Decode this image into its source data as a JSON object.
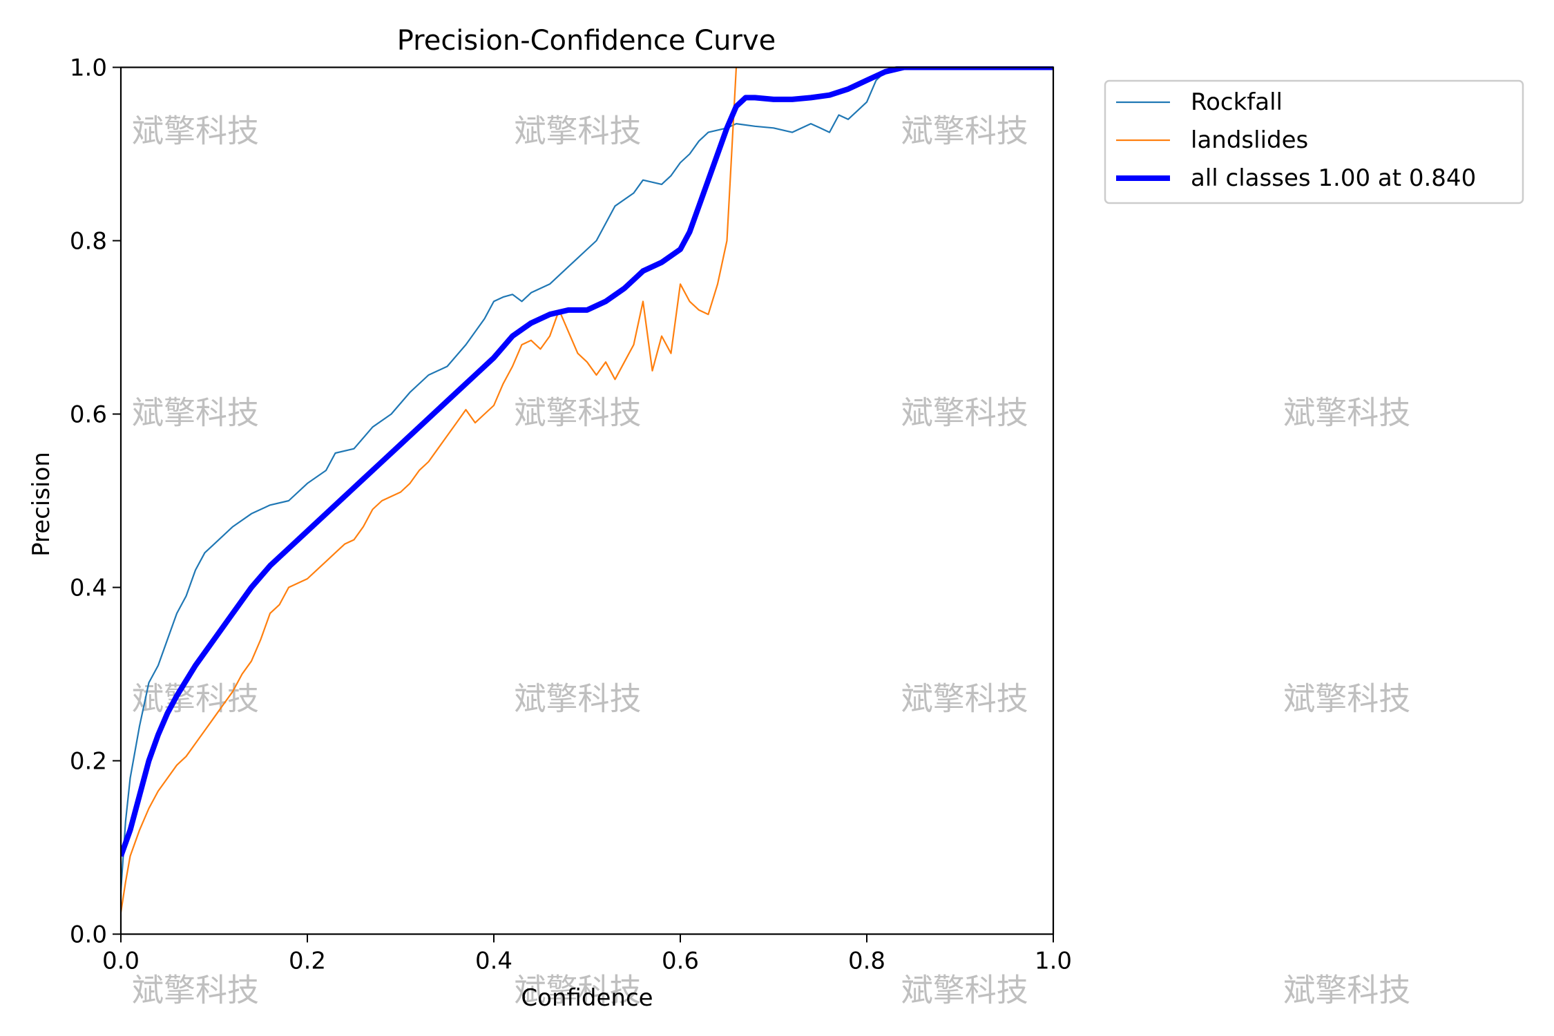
{
  "watermark": {
    "text": "斌擎科技",
    "columns": [
      0.08,
      0.49,
      0.905,
      1.315
    ],
    "rows": [
      0.925,
      0.6,
      0.27,
      -0.066
    ]
  },
  "chart_data": {
    "type": "line",
    "title": "Precision-Confidence Curve",
    "xlabel": "Confidence",
    "ylabel": "Precision",
    "xlim": [
      0.0,
      1.0
    ],
    "ylim": [
      0.0,
      1.0
    ],
    "xticks": [
      "0.0",
      "0.2",
      "0.4",
      "0.6",
      "0.8",
      "1.0"
    ],
    "yticks": [
      "0.0",
      "0.2",
      "0.4",
      "0.6",
      "0.8",
      "1.0"
    ],
    "xtick_values": [
      0,
      0.2,
      0.4,
      0.6,
      0.8,
      1.0
    ],
    "ytick_values": [
      0,
      0.2,
      0.4,
      0.6,
      0.8,
      1.0
    ],
    "grid": false,
    "legend_position": "outside-top-right",
    "series": [
      {
        "name": "Rockfall",
        "color": "#1f77b4",
        "weight": "thin",
        "x": [
          0.0,
          0.005,
          0.01,
          0.02,
          0.03,
          0.04,
          0.05,
          0.06,
          0.07,
          0.08,
          0.09,
          0.1,
          0.12,
          0.14,
          0.16,
          0.18,
          0.2,
          0.22,
          0.23,
          0.25,
          0.27,
          0.29,
          0.31,
          0.33,
          0.35,
          0.37,
          0.39,
          0.4,
          0.41,
          0.42,
          0.43,
          0.44,
          0.45,
          0.46,
          0.48,
          0.49,
          0.5,
          0.51,
          0.52,
          0.53,
          0.55,
          0.56,
          0.58,
          0.59,
          0.6,
          0.61,
          0.62,
          0.63,
          0.65,
          0.66,
          0.68,
          0.7,
          0.72,
          0.74,
          0.75,
          0.76,
          0.77,
          0.78,
          0.79,
          0.8,
          0.81,
          0.82,
          0.83,
          0.84,
          0.9,
          1.0
        ],
        "y": [
          0.05,
          0.13,
          0.18,
          0.24,
          0.29,
          0.31,
          0.34,
          0.37,
          0.39,
          0.42,
          0.44,
          0.45,
          0.47,
          0.485,
          0.495,
          0.5,
          0.52,
          0.535,
          0.555,
          0.56,
          0.585,
          0.6,
          0.625,
          0.645,
          0.655,
          0.68,
          0.71,
          0.73,
          0.735,
          0.738,
          0.73,
          0.74,
          0.745,
          0.75,
          0.77,
          0.78,
          0.79,
          0.8,
          0.82,
          0.84,
          0.855,
          0.87,
          0.865,
          0.875,
          0.89,
          0.9,
          0.915,
          0.925,
          0.93,
          0.935,
          0.932,
          0.93,
          0.925,
          0.935,
          0.93,
          0.925,
          0.945,
          0.94,
          0.95,
          0.96,
          0.985,
          0.995,
          1.0,
          1.0,
          1.0,
          1.0
        ]
      },
      {
        "name": "landslides",
        "color": "#ff7f0e",
        "weight": "thin",
        "x": [
          0.0,
          0.005,
          0.01,
          0.02,
          0.03,
          0.04,
          0.05,
          0.06,
          0.07,
          0.08,
          0.09,
          0.1,
          0.11,
          0.12,
          0.13,
          0.14,
          0.15,
          0.16,
          0.17,
          0.18,
          0.19,
          0.2,
          0.21,
          0.22,
          0.23,
          0.24,
          0.25,
          0.26,
          0.27,
          0.28,
          0.29,
          0.3,
          0.31,
          0.32,
          0.33,
          0.34,
          0.35,
          0.36,
          0.37,
          0.38,
          0.39,
          0.4,
          0.41,
          0.42,
          0.43,
          0.44,
          0.45,
          0.46,
          0.47,
          0.48,
          0.49,
          0.5,
          0.51,
          0.52,
          0.53,
          0.54,
          0.55,
          0.56,
          0.57,
          0.58,
          0.59,
          0.6,
          0.61,
          0.62,
          0.63,
          0.64,
          0.65,
          0.655,
          0.66
        ],
        "y": [
          0.025,
          0.06,
          0.09,
          0.12,
          0.145,
          0.165,
          0.18,
          0.195,
          0.205,
          0.22,
          0.235,
          0.25,
          0.265,
          0.28,
          0.3,
          0.315,
          0.34,
          0.37,
          0.38,
          0.4,
          0.405,
          0.41,
          0.42,
          0.43,
          0.44,
          0.45,
          0.455,
          0.47,
          0.49,
          0.5,
          0.505,
          0.51,
          0.52,
          0.535,
          0.545,
          0.56,
          0.575,
          0.59,
          0.605,
          0.59,
          0.6,
          0.61,
          0.635,
          0.655,
          0.68,
          0.685,
          0.675,
          0.69,
          0.72,
          0.695,
          0.67,
          0.66,
          0.645,
          0.66,
          0.64,
          0.66,
          0.68,
          0.73,
          0.65,
          0.69,
          0.67,
          0.75,
          0.73,
          0.72,
          0.715,
          0.75,
          0.8,
          0.9,
          1.0
        ]
      },
      {
        "name": "all classes 1.00 at 0.840",
        "color": "#0000ff",
        "weight": "thick",
        "x": [
          0.0,
          0.01,
          0.02,
          0.03,
          0.04,
          0.05,
          0.06,
          0.08,
          0.1,
          0.12,
          0.14,
          0.16,
          0.18,
          0.2,
          0.22,
          0.24,
          0.26,
          0.28,
          0.3,
          0.32,
          0.34,
          0.36,
          0.38,
          0.4,
          0.42,
          0.44,
          0.46,
          0.48,
          0.5,
          0.52,
          0.54,
          0.55,
          0.56,
          0.58,
          0.6,
          0.61,
          0.62,
          0.63,
          0.64,
          0.65,
          0.66,
          0.67,
          0.68,
          0.7,
          0.72,
          0.74,
          0.76,
          0.78,
          0.8,
          0.82,
          0.84,
          0.9,
          1.0
        ],
        "y": [
          0.09,
          0.12,
          0.16,
          0.2,
          0.23,
          0.255,
          0.275,
          0.31,
          0.34,
          0.37,
          0.4,
          0.425,
          0.445,
          0.465,
          0.485,
          0.505,
          0.525,
          0.545,
          0.565,
          0.585,
          0.605,
          0.625,
          0.645,
          0.665,
          0.69,
          0.705,
          0.715,
          0.72,
          0.72,
          0.73,
          0.745,
          0.755,
          0.765,
          0.775,
          0.79,
          0.81,
          0.84,
          0.87,
          0.9,
          0.93,
          0.955,
          0.965,
          0.965,
          0.963,
          0.963,
          0.965,
          0.968,
          0.975,
          0.985,
          0.995,
          1.0,
          1.0,
          1.0
        ]
      }
    ]
  }
}
